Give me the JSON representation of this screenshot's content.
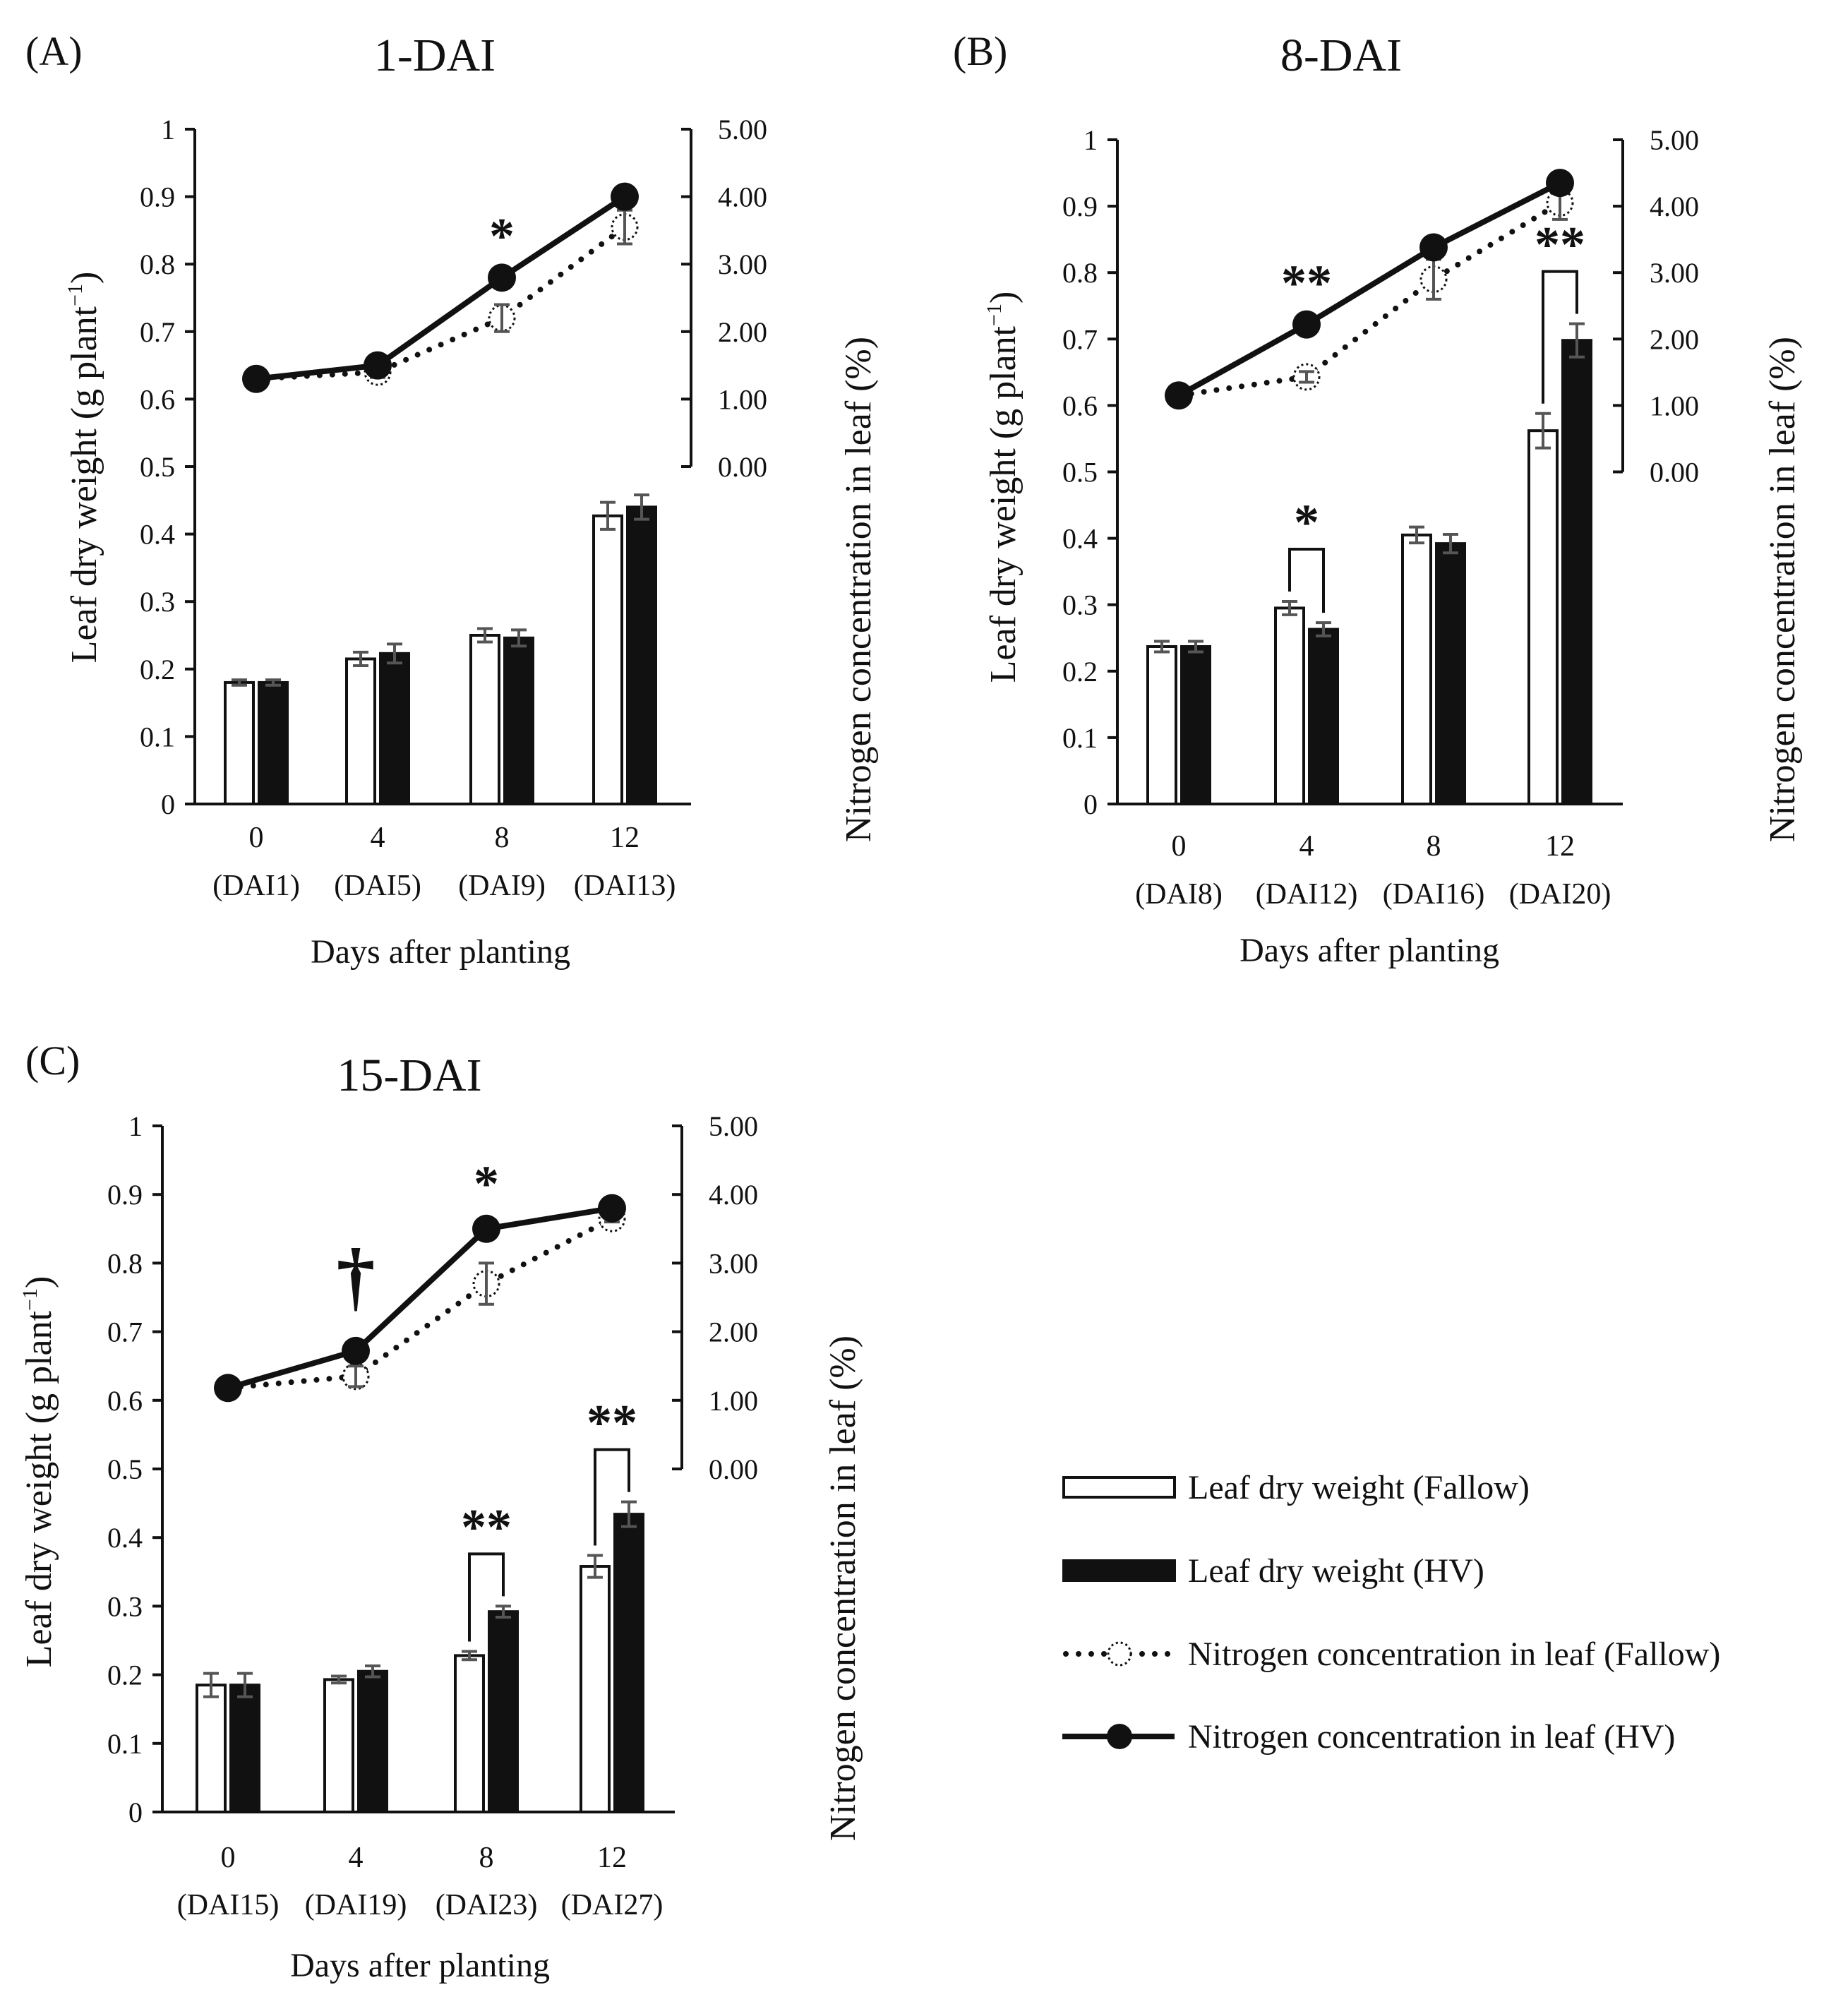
{
  "chart_data": [
    {
      "type": "bar",
      "panel_label": "(A)",
      "title": "1-DAI",
      "xlabel": "Days after planting",
      "ylabel": "Leaf dry weight (g plant",
      "ylabel_sup": "−1",
      "ylabel_end": ")",
      "y2label": "Nitrogen concentration in leaf (%)",
      "ylim": [
        0,
        1
      ],
      "y2lim": [
        0,
        5
      ],
      "yticks": [
        "0",
        "0.1",
        "0.2",
        "0.3",
        "0.4",
        "0.5",
        "0.6",
        "0.7",
        "0.8",
        "0.9",
        "1"
      ],
      "y2ticks": [
        "0.00",
        "1.00",
        "2.00",
        "3.00",
        "4.00",
        "5.00"
      ],
      "categories": [
        "0",
        "4",
        "8",
        "12"
      ],
      "sublabels": [
        "(DAI1)",
        "(DAI5)",
        "(DAI9)",
        "(DAI13)"
      ],
      "series": [
        {
          "name": "Leaf dry weight (Fallow)",
          "values": [
            0.18,
            0.215,
            0.25,
            0.427
          ],
          "err": [
            0.004,
            0.01,
            0.01,
            0.02
          ]
        },
        {
          "name": "Leaf dry weight (HV)",
          "values": [
            0.18,
            0.223,
            0.246,
            0.44
          ],
          "err": [
            0.004,
            0.014,
            0.012,
            0.018
          ]
        },
        {
          "name": "Nitrogen concentration in leaf (Fallow)",
          "values": [
            1.3,
            1.4,
            2.2,
            3.55
          ],
          "err": [
            0.05,
            0.08,
            0.2,
            0.25
          ]
        },
        {
          "name": "Nitrogen concentration in leaf (HV)",
          "values": [
            1.3,
            1.5,
            2.8,
            4.0
          ],
          "err": [
            0.05,
            0.05,
            0.05,
            0.05
          ]
        }
      ],
      "annotations": [
        {
          "target": "nitrogen",
          "index": 2,
          "text": "*"
        }
      ]
    },
    {
      "type": "bar",
      "panel_label": "(B)",
      "title": "8-DAI",
      "xlabel": "Days after planting",
      "ylabel": "Leaf dry weight (g plant",
      "ylabel_sup": "−1",
      "ylabel_end": ")",
      "y2label": "Nitrogen concentration in leaf (%)",
      "ylim": [
        0,
        1
      ],
      "y2lim": [
        0,
        5
      ],
      "yticks": [
        "0",
        "0.1",
        "0.2",
        "0.3",
        "0.4",
        "0.5",
        "0.6",
        "0.7",
        "0.8",
        "0.9",
        "1"
      ],
      "y2ticks": [
        "0.00",
        "1.00",
        "2.00",
        "3.00",
        "4.00",
        "5.00"
      ],
      "categories": [
        "0",
        "4",
        "8",
        "12"
      ],
      "sublabels": [
        "(DAI8)",
        "(DAI12)",
        "(DAI16)",
        "(DAI20)"
      ],
      "series": [
        {
          "name": "Leaf dry weight (Fallow)",
          "values": [
            0.237,
            0.295,
            0.405,
            0.562
          ],
          "err": [
            0.008,
            0.01,
            0.012,
            0.026
          ]
        },
        {
          "name": "Leaf dry weight (HV)",
          "values": [
            0.237,
            0.263,
            0.392,
            0.698
          ],
          "err": [
            0.008,
            0.01,
            0.014,
            0.025
          ]
        },
        {
          "name": "Nitrogen concentration in leaf (Fallow)",
          "values": [
            1.15,
            1.43,
            2.9,
            4.05
          ],
          "err": [
            0.05,
            0.08,
            0.3,
            0.25
          ]
        },
        {
          "name": "Nitrogen concentration in leaf (HV)",
          "values": [
            1.15,
            2.22,
            3.38,
            4.35
          ],
          "err": [
            0.05,
            0.05,
            0.05,
            0.05
          ]
        }
      ],
      "annotations": [
        {
          "target": "nitrogen",
          "index": 1,
          "text": "**"
        },
        {
          "target": "bar",
          "index": 1,
          "text": "*"
        },
        {
          "target": "bar",
          "index": 3,
          "text": "**"
        }
      ]
    },
    {
      "type": "bar",
      "panel_label": "(C)",
      "title": "15-DAI",
      "xlabel": "Days after planting",
      "ylabel": "Leaf dry weight (g plant",
      "ylabel_sup": "−1",
      "ylabel_end": ")",
      "y2label": "Nitrogen concentration in leaf (%)",
      "ylim": [
        0,
        1
      ],
      "y2lim": [
        0,
        5
      ],
      "yticks": [
        "0",
        "0.1",
        "0.2",
        "0.3",
        "0.4",
        "0.5",
        "0.6",
        "0.7",
        "0.8",
        "0.9",
        "1"
      ],
      "y2ticks": [
        "0.00",
        "1.00",
        "2.00",
        "3.00",
        "4.00",
        "5.00"
      ],
      "categories": [
        "0",
        "4",
        "8",
        "12"
      ],
      "sublabels": [
        "(DAI15)",
        "(DAI19)",
        "(DAI23)",
        "(DAI27)"
      ],
      "series": [
        {
          "name": "Leaf dry weight (Fallow)",
          "values": [
            0.185,
            0.193,
            0.228,
            0.358
          ],
          "err": [
            0.017,
            0.005,
            0.006,
            0.016
          ]
        },
        {
          "name": "Leaf dry weight (HV)",
          "values": [
            0.185,
            0.205,
            0.292,
            0.434
          ],
          "err": [
            0.017,
            0.008,
            0.008,
            0.018
          ]
        },
        {
          "name": "Nitrogen concentration in leaf (Fallow)",
          "values": [
            1.18,
            1.35,
            2.7,
            3.65
          ],
          "err": [
            0.05,
            0.15,
            0.3,
            0.05
          ]
        },
        {
          "name": "Nitrogen concentration in leaf (HV)",
          "values": [
            1.18,
            1.72,
            3.5,
            3.8
          ],
          "err": [
            0.05,
            0.2,
            0.1,
            0.05
          ]
        }
      ],
      "annotations": [
        {
          "target": "nitrogen",
          "index": 1,
          "text": "†"
        },
        {
          "target": "nitrogen",
          "index": 2,
          "text": "*"
        },
        {
          "target": "bar",
          "index": 2,
          "text": "**"
        },
        {
          "target": "bar",
          "index": 3,
          "text": "**"
        }
      ]
    }
  ],
  "legend": {
    "position": "bottom-right",
    "items": [
      {
        "label": "Leaf dry weight (Fallow)",
        "kind": "bar-open"
      },
      {
        "label": "Leaf dry weight (HV)",
        "kind": "bar-filled"
      },
      {
        "label": "Nitrogen concentration in leaf (Fallow)",
        "kind": "line-dotted"
      },
      {
        "label": "Nitrogen concentration in leaf (HV)",
        "kind": "line-solid"
      }
    ]
  },
  "colors": {
    "ink": "#111111",
    "error": "#555555",
    "open_fill": "#ffffff"
  }
}
